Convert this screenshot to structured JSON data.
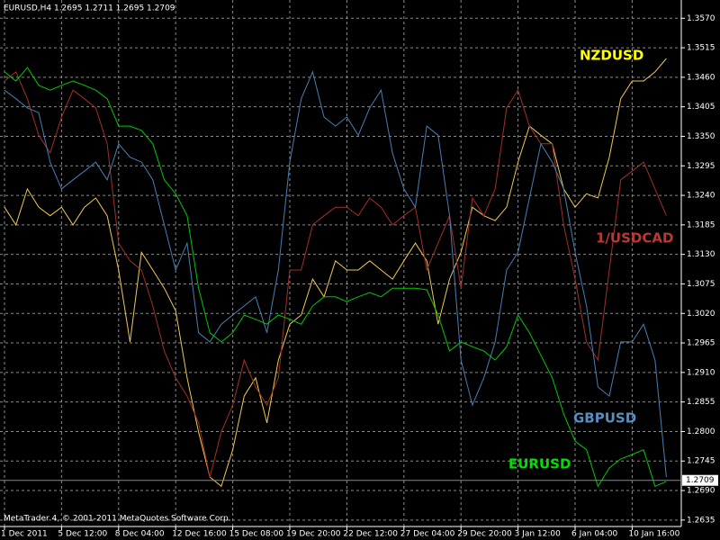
{
  "chart_data": {
    "type": "line",
    "header": "EURUSD,H4  1.2695 1.2711 1.2695 1.2709",
    "footer": "MetaTrader 4, © 2001-2011 MetaQuotes Software Corp.",
    "categories": [
      "1 Dec 2011",
      null,
      null,
      null,
      null,
      "5 Dec 12:00",
      null,
      null,
      null,
      null,
      "8 Dec 04:00",
      null,
      null,
      null,
      null,
      "12 Dec 16:00",
      null,
      null,
      null,
      null,
      "15 Dec 08:00",
      null,
      null,
      null,
      null,
      "19 Dec 20:00",
      null,
      null,
      null,
      null,
      "22 Dec 12:00",
      null,
      null,
      null,
      null,
      "27 Dec 04:00",
      null,
      null,
      null,
      null,
      "29 Dec 20:00",
      null,
      null,
      null,
      null,
      "3 Jan 12:00",
      null,
      null,
      null,
      null,
      "6 Jan 04:00",
      null,
      null,
      null,
      null,
      "10 Jan 16:00",
      null,
      null,
      null
    ],
    "series": [
      {
        "name": "NZDUSD",
        "color": "#f0c850",
        "label_color": "#ffff00",
        "values": [
          1.3218,
          1.3185,
          1.3252,
          1.3218,
          1.3202,
          1.3218,
          1.3185,
          1.3218,
          1.3235,
          1.3202,
          1.3101,
          1.2967,
          1.3134,
          1.3101,
          1.3067,
          1.3025,
          1.29,
          1.2799,
          1.2715,
          1.2698,
          1.2766,
          1.2866,
          1.29,
          1.2816,
          1.2933,
          1.3,
          1.3017,
          1.3084,
          1.3051,
          1.3118,
          1.3101,
          1.3101,
          1.3118,
          1.3101,
          1.3084,
          1.3118,
          1.3151,
          1.3118,
          1.3,
          1.3084,
          1.3134,
          1.3218,
          1.3202,
          1.3193,
          1.3218,
          1.3302,
          1.3369,
          1.3352,
          1.3336,
          1.3252,
          1.3218,
          1.3243,
          1.3235,
          1.3311,
          1.342,
          1.3453,
          1.3453,
          1.347,
          1.3495
        ]
      },
      {
        "name": "1/USDCAD",
        "color": "#a0302a",
        "label_color": "#b83a32",
        "values": [
          1.3453,
          1.347,
          1.342,
          1.3352,
          1.3319,
          1.3386,
          1.3436,
          1.342,
          1.3403,
          1.3336,
          1.3151,
          1.3118,
          1.3101,
          1.3034,
          1.295,
          1.29,
          1.2866,
          1.2816,
          1.2715,
          1.2799,
          1.2849,
          1.2933,
          1.2883,
          1.2849,
          1.29,
          1.3101,
          1.3101,
          1.3185,
          1.3202,
          1.3218,
          1.3218,
          1.3202,
          1.3235,
          1.3218,
          1.3185,
          1.3202,
          1.3218,
          1.3101,
          1.3151,
          1.3202,
          1.3067,
          1.3235,
          1.3202,
          1.3252,
          1.3403,
          1.3436,
          1.3369,
          1.3336,
          1.3336,
          1.3185,
          1.3084,
          1.2967,
          1.2933,
          1.3101,
          1.3269,
          1.3285,
          1.3302,
          1.3252,
          1.3202
        ]
      },
      {
        "name": "GBPUSD",
        "color": "#4a7eb0",
        "label_color": "#5a8ec0",
        "values": [
          1.3436,
          1.342,
          1.3403,
          1.3394,
          1.3302,
          1.3252,
          1.3269,
          1.3285,
          1.3302,
          1.3269,
          1.3336,
          1.3311,
          1.3302,
          1.3269,
          1.3185,
          1.3101,
          1.3151,
          1.2984,
          1.2967,
          1.3,
          1.3017,
          1.3034,
          1.3051,
          1.2984,
          1.3101,
          1.3302,
          1.342,
          1.347,
          1.3386,
          1.3369,
          1.3386,
          1.3352,
          1.3403,
          1.3436,
          1.3319,
          1.3252,
          1.3218,
          1.3369,
          1.3352,
          1.3202,
          1.2933,
          1.2849,
          1.29,
          1.2967,
          1.3101,
          1.3134,
          1.3235,
          1.3336,
          1.3302,
          1.3252,
          1.3134,
          1.3034,
          1.2883,
          1.2866,
          1.2967,
          1.2967,
          1.3,
          1.2933,
          1.2715
        ]
      },
      {
        "name": "EURUSD",
        "color": "#00c800",
        "label_color": "#00e000",
        "values": [
          1.347,
          1.3453,
          1.3478,
          1.3445,
          1.3436,
          1.3445,
          1.3453,
          1.3445,
          1.3436,
          1.342,
          1.3369,
          1.3369,
          1.3361,
          1.3336,
          1.3269,
          1.3243,
          1.3202,
          1.3067,
          1.2984,
          1.2967,
          1.2984,
          1.3017,
          1.3009,
          1.3,
          1.3017,
          1.3009,
          1.3,
          1.3034,
          1.3051,
          1.3051,
          1.3042,
          1.3051,
          1.3059,
          1.3051,
          1.3067,
          1.3067,
          1.3067,
          1.3064,
          1.3017,
          1.295,
          1.2967,
          1.2958,
          1.295,
          1.2933,
          1.2958,
          1.3017,
          1.2984,
          1.2942,
          1.29,
          1.2833,
          1.2782,
          1.2766,
          1.2698,
          1.2732,
          1.2749,
          1.2757,
          1.2766,
          1.2698,
          1.2707
        ]
      }
    ],
    "last_price": 1.2709,
    "ylim": [
      1.2623,
      1.3604
    ],
    "yticks": [
      {
        "value": 1.357,
        "label": "1.3570"
      },
      1.3515,
      {
        "value": 1.346,
        "label": "1.3460"
      },
      1.3405,
      {
        "value": 1.335,
        "label": "1.3350"
      },
      1.3295,
      {
        "value": 1.324,
        "label": "1.3240"
      },
      1.3185,
      {
        "value": 1.313,
        "label": "1.3130"
      },
      1.3075,
      {
        "value": 1.302,
        "label": "1.3020"
      },
      1.2965,
      {
        "value": 1.291,
        "label": "1.2910"
      },
      1.2855,
      {
        "value": 1.28,
        "label": "1.2800"
      },
      1.2745,
      {
        "value": 1.269,
        "label": "1.2690"
      },
      1.2635
    ],
    "grid": true
  }
}
